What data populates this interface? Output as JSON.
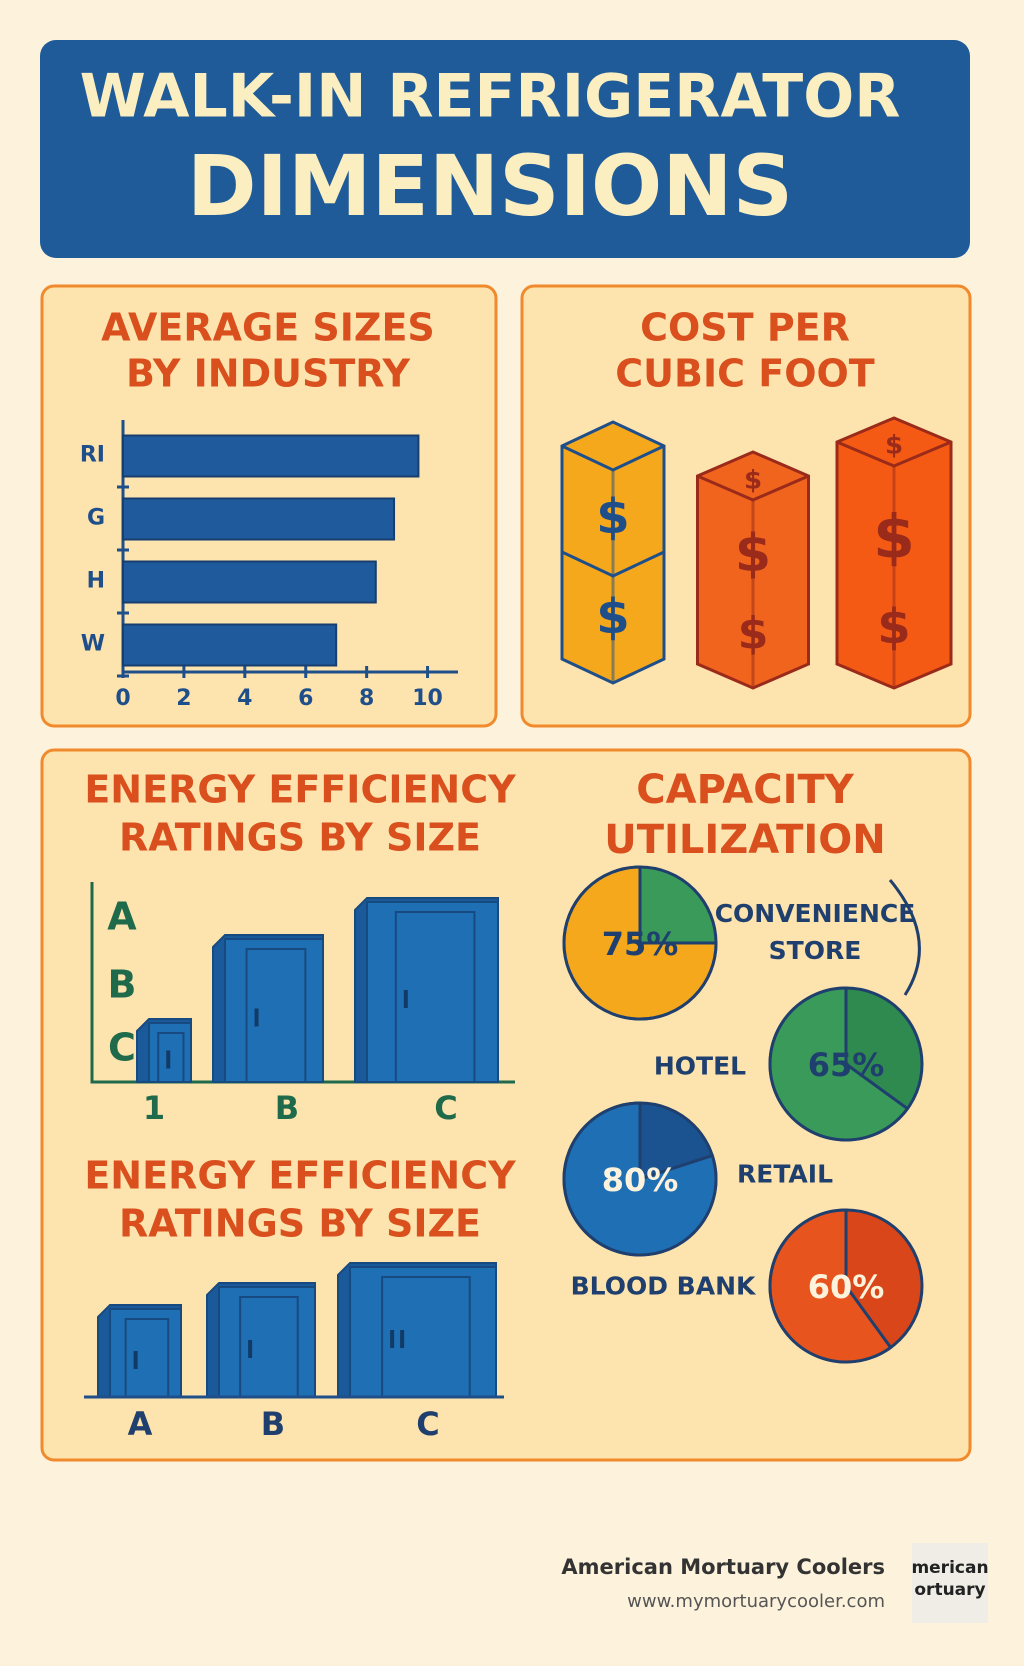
{
  "header": {
    "title_line1": "WALK-IN REFRIGERATOR",
    "title_line2": "DIMENSIONS"
  },
  "chart_data": [
    {
      "type": "bar",
      "orientation": "horizontal",
      "title_lines": [
        "AVERAGE SIZES",
        "BY INDUSTRY"
      ],
      "categories": [
        "RI",
        "G",
        "H",
        "W"
      ],
      "values": [
        9.7,
        8.9,
        8.3,
        7.0
      ],
      "color": "#1f5b9c",
      "xlim": [
        0,
        11
      ],
      "xticks": [
        0,
        2,
        4,
        6,
        8,
        10
      ]
    },
    {
      "type": "pie",
      "title_lines": [
        "CAPACITY",
        "UTILIZATION"
      ],
      "categories": [
        "CONVENIENCE STORE",
        "HOTEL",
        "RETAIL",
        "BLOOD BANK"
      ],
      "values": [
        75,
        65,
        80,
        60
      ],
      "value_labels": [
        "75%",
        "65%",
        "80%",
        "60%"
      ],
      "colors": [
        "#f5a81c",
        "#3a9a5a",
        "#1f6fb5",
        "#e8541e"
      ]
    }
  ],
  "cost_panel": {
    "title_lines": [
      "COST PER",
      "CUBIC FOOT"
    ],
    "symbol": "$"
  },
  "energy_charts": [
    {
      "title_lines": [
        "ENERGY EFFICIENCY",
        "RATINGS BY SIZE"
      ],
      "y_labels": [
        "A",
        "B",
        "C"
      ],
      "categories": [
        "1",
        "B",
        "C"
      ]
    },
    {
      "title_lines": [
        "ENERGY EFFICIENCY",
        "RATINGS BY SIZE"
      ],
      "categories": [
        "A",
        "B",
        "C"
      ]
    }
  ],
  "footer": {
    "company": "American Mortuary Coolers",
    "url": "www.mymortuarycooler.com",
    "logo_lines": [
      "merican",
      "ortuary"
    ]
  }
}
